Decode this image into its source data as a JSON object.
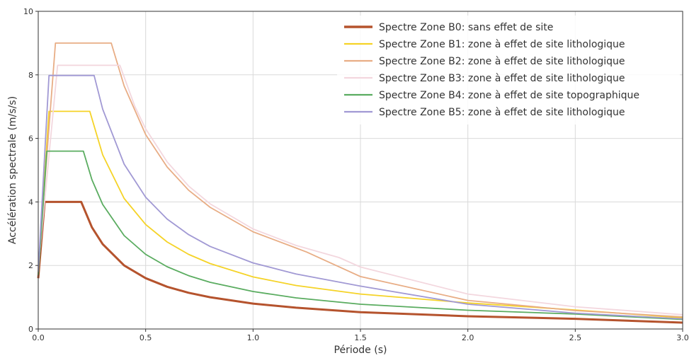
{
  "chart_data": {
    "type": "line",
    "xlabel": "Période (s)",
    "ylabel": "Accélération spectrale (m/s/s)",
    "xlim": [
      0.0,
      3.0
    ],
    "ylim": [
      0,
      10
    ],
    "xticks": [
      0.0,
      0.5,
      1.0,
      1.5,
      2.0,
      2.5,
      3.0
    ],
    "xtick_labels": [
      "0.0",
      "0.5",
      "1.0",
      "1.5",
      "2.0",
      "2.5",
      "3.0"
    ],
    "yticks": [
      0,
      2,
      4,
      6,
      8,
      10
    ],
    "ytick_labels": [
      "0",
      "2",
      "4",
      "6",
      "8",
      "10"
    ],
    "grid": true,
    "legend_position": "top-right",
    "series": [
      {
        "name": "Spectre Zone B0: sans effet de site",
        "color": "#b5532d",
        "x": [
          0,
          0.03,
          0.2,
          0.25,
          0.3,
          0.4,
          0.5,
          0.6,
          0.7,
          0.8,
          1.0,
          1.2,
          1.5,
          2.0,
          2.5,
          3.0
        ],
        "y": [
          1.6,
          4.0,
          4.0,
          3.2,
          2.67,
          2.0,
          1.6,
          1.33,
          1.14,
          1.0,
          0.8,
          0.67,
          0.53,
          0.4,
          0.32,
          0.2
        ]
      },
      {
        "name": "Spectre Zone B1: zone à effet de site lithologique",
        "color": "#f5d327",
        "x": [
          0,
          0.05,
          0.24,
          0.3,
          0.4,
          0.5,
          0.6,
          0.7,
          0.8,
          1.0,
          1.2,
          1.5,
          2.0,
          2.5,
          3.0
        ],
        "y": [
          1.8,
          6.85,
          6.85,
          5.48,
          4.11,
          3.29,
          2.74,
          2.35,
          2.06,
          1.64,
          1.37,
          1.1,
          0.82,
          0.6,
          0.35
        ]
      },
      {
        "name": "Spectre Zone B2: zone à effet de site lithologique",
        "color": "#e8ad85",
        "x": [
          0,
          0.08,
          0.34,
          0.4,
          0.5,
          0.6,
          0.7,
          0.8,
          1.0,
          1.2,
          1.25,
          1.5,
          2.0,
          2.5,
          3.0
        ],
        "y": [
          1.9,
          9.0,
          9.0,
          7.65,
          6.12,
          5.1,
          4.37,
          3.83,
          3.06,
          2.55,
          2.42,
          1.65,
          0.9,
          0.58,
          0.38
        ]
      },
      {
        "name": "Spectre Zone B3: zone à effet de site lithologique",
        "color": "#f3d7de",
        "x": [
          0,
          0.09,
          0.38,
          0.45,
          0.5,
          0.6,
          0.7,
          0.8,
          1.0,
          1.2,
          1.4,
          1.5,
          2.0,
          2.5,
          3.0
        ],
        "y": [
          1.9,
          8.3,
          8.3,
          7.0,
          6.3,
          5.26,
          4.5,
          3.94,
          3.15,
          2.63,
          2.25,
          1.95,
          1.1,
          0.7,
          0.45
        ]
      },
      {
        "name": "Spectre Zone B4: zone à effet de site topographique",
        "color": "#5aac60",
        "x": [
          0,
          0.04,
          0.21,
          0.25,
          0.3,
          0.4,
          0.5,
          0.6,
          0.7,
          0.8,
          1.0,
          1.2,
          1.5,
          2.0,
          2.5,
          3.0
        ],
        "y": [
          1.7,
          5.6,
          5.6,
          4.7,
          3.92,
          2.94,
          2.35,
          1.96,
          1.68,
          1.47,
          1.18,
          0.98,
          0.78,
          0.59,
          0.47,
          0.3
        ]
      },
      {
        "name": "Spectre Zone B5: zone à effet de site lithologique",
        "color": "#a199d4",
        "x": [
          0,
          0.05,
          0.26,
          0.3,
          0.4,
          0.5,
          0.6,
          0.7,
          0.8,
          1.0,
          1.2,
          1.5,
          2.0,
          2.5,
          3.0
        ],
        "y": [
          1.8,
          7.98,
          7.98,
          6.92,
          5.19,
          4.15,
          3.46,
          2.97,
          2.6,
          2.08,
          1.73,
          1.35,
          0.78,
          0.5,
          0.32
        ]
      }
    ]
  }
}
